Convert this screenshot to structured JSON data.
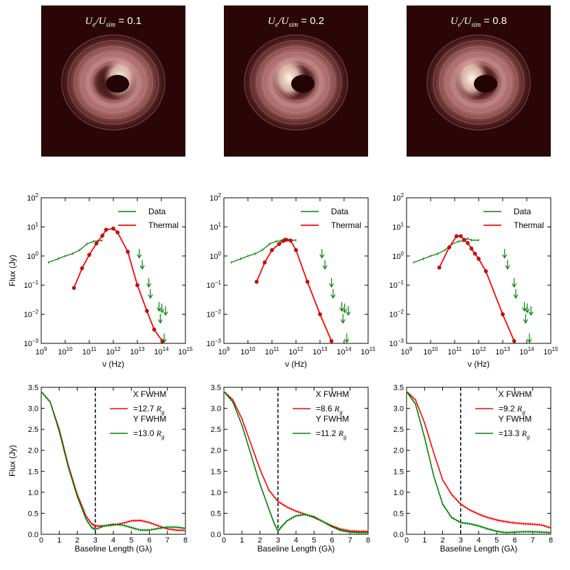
{
  "panels": [
    {
      "image": {
        "title_prefix": "U",
        "title_sub1": "e",
        "title_mid": "/U",
        "title_sub2": "sim",
        "title_value": " = 0.1",
        "hotspot_side": "right"
      }
    },
    {
      "image": {
        "title_prefix": "U",
        "title_sub1": "e",
        "title_mid": "/U",
        "title_sub2": "sim",
        "title_value": " = 0.2",
        "hotspot_side": "left"
      }
    },
    {
      "image": {
        "title_prefix": "U",
        "title_sub1": "e",
        "title_mid": "/U",
        "title_sub2": "sim",
        "title_value": " = 0.8",
        "hotspot_side": "left"
      }
    }
  ],
  "colors": {
    "data": "#008000",
    "thermal": "#ff0000",
    "x_fwhm": "#ff0000",
    "y_fwhm": "#008000",
    "image_bg": "#2a0606"
  },
  "chart_data": [
    {
      "type": "line",
      "panel": 1,
      "row": "sed",
      "xlabel": "ν (Hz)",
      "ylabel": "Flux (Jy)",
      "xscale": "log",
      "yscale": "log",
      "xlim": [
        1000000000.0,
        1000000000000000.0
      ],
      "ylim": [
        0.001,
        100
      ],
      "xtick_labels": [
        "10^9",
        "10^10",
        "10^11",
        "10^12",
        "10^13",
        "10^14",
        "10^15"
      ],
      "ytick_labels": [
        "10^-3",
        "10^-2",
        "10^-1",
        "10^0",
        "10^1",
        "10^2"
      ],
      "legend": [
        "Data",
        "Thermal"
      ],
      "legend_position": "top-right",
      "series": [
        {
          "name": "Data",
          "kind": "line",
          "x": [
            2000000000.0,
            5000000000.0,
            10000000000.0,
            20000000000.0,
            40000000000.0,
            80000000000.0,
            150000000000.0,
            230000000000.0,
            340000000000.0
          ],
          "y": [
            0.6,
            0.8,
            1.0,
            1.2,
            1.6,
            2.6,
            3.2,
            3.3,
            3.4
          ]
        },
        {
          "name": "Thermal",
          "kind": "line+markers",
          "x": [
            23000000000.0,
            50000000000.0,
            100000000000.0,
            200000000000.0,
            350000000000.0,
            500000000000.0,
            1000000000000.0,
            1500000000000.0,
            4000000000000.0,
            10000000000000.0,
            25000000000000.0,
            50000000000000.0,
            110000000000000.0
          ],
          "y": [
            0.08,
            0.38,
            1.1,
            2.7,
            5.0,
            8.0,
            8.8,
            6.5,
            1.4,
            0.1,
            0.013,
            0.003,
            0.0012
          ]
        },
        {
          "name": "upper limits",
          "kind": "arrows",
          "x": [
            12000000000000.0,
            16000000000000.0,
            30000000000000.0,
            35000000000000.0,
            80000000000000.0,
            90000000000000.0,
            105000000000000.0,
            130000000000000.0,
            150000000000000.0
          ],
          "y": [
            1.2,
            0.5,
            0.12,
            0.05,
            0.018,
            0.007,
            0.016,
            0.0015,
            0.013
          ]
        }
      ]
    },
    {
      "type": "line",
      "panel": 2,
      "row": "sed",
      "xlabel": "ν (Hz)",
      "ylabel": "",
      "xscale": "log",
      "yscale": "log",
      "xlim": [
        1000000000.0,
        1000000000000000.0
      ],
      "ylim": [
        0.001,
        100
      ],
      "xtick_labels": [
        "10^9",
        "10^10",
        "10^11",
        "10^12",
        "10^13",
        "10^14",
        "10^15"
      ],
      "ytick_labels": [
        "10^-3",
        "10^-2",
        "10^-1",
        "10^0",
        "10^1",
        "10^2"
      ],
      "legend": [
        "Data",
        "Thermal"
      ],
      "legend_position": "top-right",
      "series": [
        {
          "name": "Data",
          "kind": "line",
          "x": [
            2000000000.0,
            5000000000.0,
            10000000000.0,
            20000000000.0,
            40000000000.0,
            80000000000.0,
            150000000000.0,
            230000000000.0,
            340000000000.0,
            500000000000.0,
            1000000000000.0
          ],
          "y": [
            0.6,
            0.8,
            1.0,
            1.2,
            1.6,
            2.6,
            3.2,
            3.3,
            4.0,
            3.5,
            3.5
          ]
        },
        {
          "name": "Thermal",
          "kind": "line+markers",
          "x": [
            23000000000.0,
            50000000000.0,
            100000000000.0,
            200000000000.0,
            300000000000.0,
            400000000000.0,
            600000000000.0,
            1000000000000.0,
            3000000000000.0,
            10000000000000.0,
            30000000000000.0
          ],
          "y": [
            0.13,
            0.6,
            1.6,
            2.6,
            3.3,
            3.6,
            3.4,
            1.6,
            0.13,
            0.01,
            0.0012
          ]
        },
        {
          "name": "upper limits",
          "kind": "arrows",
          "x": [
            12000000000000.0,
            16000000000000.0,
            30000000000000.0,
            35000000000000.0,
            80000000000000.0,
            90000000000000.0,
            105000000000000.0,
            130000000000000.0,
            150000000000000.0
          ],
          "y": [
            1.2,
            0.5,
            0.12,
            0.05,
            0.018,
            0.007,
            0.016,
            0.0015,
            0.013
          ]
        }
      ]
    },
    {
      "type": "line",
      "panel": 3,
      "row": "sed",
      "xlabel": "ν (Hz)",
      "ylabel": "",
      "xscale": "log",
      "yscale": "log",
      "xlim": [
        1000000000.0,
        1000000000000000.0
      ],
      "ylim": [
        0.001,
        100
      ],
      "xtick_labels": [
        "10^9",
        "10^10",
        "10^11",
        "10^12",
        "10^13",
        "10^14",
        "10^15"
      ],
      "ytick_labels": [
        "10^-3",
        "10^-2",
        "10^-1",
        "10^0",
        "10^1",
        "10^2"
      ],
      "legend": [
        "Data",
        "Thermal"
      ],
      "legend_position": "top-right",
      "series": [
        {
          "name": "Data",
          "kind": "line",
          "x": [
            2000000000.0,
            5000000000.0,
            10000000000.0,
            20000000000.0,
            40000000000.0,
            80000000000.0,
            150000000000.0,
            230000000000.0,
            340000000000.0,
            500000000000.0,
            1000000000000.0
          ],
          "y": [
            0.6,
            0.8,
            1.0,
            1.2,
            1.6,
            2.6,
            3.2,
            3.3,
            4.0,
            3.5,
            3.5
          ]
        },
        {
          "name": "Thermal",
          "kind": "line+markers",
          "x": [
            23000000000.0,
            60000000000.0,
            120000000000.0,
            180000000000.0,
            250000000000.0,
            350000000000.0,
            500000000000.0,
            700000000000.0,
            1000000000000.0,
            2000000000000.0,
            10000000000000.0,
            30000000000000.0
          ],
          "y": [
            0.4,
            2.0,
            4.8,
            4.8,
            3.6,
            2.8,
            1.8,
            1.2,
            0.8,
            0.3,
            0.01,
            0.0012
          ]
        },
        {
          "name": "upper limits",
          "kind": "arrows",
          "x": [
            12000000000000.0,
            16000000000000.0,
            30000000000000.0,
            35000000000000.0,
            80000000000000.0,
            90000000000000.0,
            105000000000000.0,
            130000000000000.0,
            150000000000000.0
          ],
          "y": [
            1.2,
            0.5,
            0.12,
            0.05,
            0.018,
            0.007,
            0.016,
            0.0015,
            0.013
          ]
        }
      ]
    },
    {
      "type": "line",
      "panel": 1,
      "row": "visibility",
      "xlabel": "Baseline Length (Gλ)",
      "ylabel": "Flux (Jy)",
      "xlim": [
        0,
        8
      ],
      "ylim": [
        0,
        3.5
      ],
      "xticks": [
        0,
        1,
        2,
        3,
        4,
        5,
        6,
        7,
        8
      ],
      "yticks": [
        0.0,
        0.5,
        1.0,
        1.5,
        2.0,
        2.5,
        3.0,
        3.5
      ],
      "vline": 3,
      "legend": [
        {
          "name": "X FWHM",
          "value": "=12.7",
          "unit": "R",
          "unit_sub": "g"
        },
        {
          "name": "Y FWHM",
          "value": "=13.0",
          "unit": "R",
          "unit_sub": "g"
        }
      ],
      "legend_position": "top-right",
      "series": [
        {
          "name": "X FWHM",
          "x": [
            0,
            0.5,
            1,
            1.5,
            2,
            2.5,
            2.8,
            3,
            3.5,
            4,
            4.5,
            5,
            5.5,
            6,
            6.5,
            7,
            7.5,
            8
          ],
          "y": [
            3.4,
            3.15,
            2.5,
            1.65,
            0.95,
            0.42,
            0.25,
            0.2,
            0.2,
            0.22,
            0.26,
            0.32,
            0.33,
            0.28,
            0.2,
            0.13,
            0.1,
            0.09
          ]
        },
        {
          "name": "Y FWHM",
          "x": [
            0,
            0.5,
            1,
            1.5,
            2,
            2.5,
            2.8,
            3,
            3.5,
            4,
            4.5,
            5,
            5.5,
            6,
            6.5,
            7,
            7.5,
            8
          ],
          "y": [
            3.4,
            3.15,
            2.45,
            1.6,
            0.9,
            0.35,
            0.16,
            0.12,
            0.2,
            0.24,
            0.22,
            0.16,
            0.1,
            0.1,
            0.14,
            0.17,
            0.17,
            0.14
          ]
        }
      ]
    },
    {
      "type": "line",
      "panel": 2,
      "row": "visibility",
      "xlabel": "Baseline Length (Gλ)",
      "ylabel": "",
      "xlim": [
        0,
        8
      ],
      "ylim": [
        0,
        3.5
      ],
      "xticks": [
        0,
        1,
        2,
        3,
        4,
        5,
        6,
        7,
        8
      ],
      "yticks": [
        0.0,
        0.5,
        1.0,
        1.5,
        2.0,
        2.5,
        3.0,
        3.5
      ],
      "vline": 3,
      "legend": [
        {
          "name": "X FWHM",
          "value": "=8.6",
          "unit": "R",
          "unit_sub": "g"
        },
        {
          "name": "Y FWHM",
          "value": "=11.2",
          "unit": "R",
          "unit_sub": "g"
        }
      ],
      "legend_position": "top-right",
      "series": [
        {
          "name": "X FWHM",
          "x": [
            0,
            0.5,
            1,
            1.5,
            2,
            2.5,
            3,
            3.5,
            4,
            4.5,
            5,
            5.5,
            6,
            6.5,
            7,
            7.5,
            8
          ],
          "y": [
            3.4,
            3.2,
            2.75,
            2.15,
            1.55,
            1.05,
            0.78,
            0.65,
            0.55,
            0.48,
            0.4,
            0.3,
            0.2,
            0.12,
            0.08,
            0.07,
            0.07
          ]
        },
        {
          "name": "Y FWHM",
          "x": [
            0,
            0.5,
            1,
            1.5,
            2,
            2.5,
            2.8,
            3,
            3.2,
            3.5,
            4,
            4.5,
            5,
            5.5,
            6,
            6.5,
            7,
            7.5,
            8
          ],
          "y": [
            3.4,
            3.15,
            2.6,
            1.9,
            1.2,
            0.6,
            0.25,
            0.08,
            0.18,
            0.32,
            0.44,
            0.47,
            0.42,
            0.3,
            0.18,
            0.09,
            0.05,
            0.04,
            0.04
          ]
        }
      ]
    },
    {
      "type": "line",
      "panel": 3,
      "row": "visibility",
      "xlabel": "Baseline Length (Gλ)",
      "ylabel": "",
      "xlim": [
        0,
        8
      ],
      "ylim": [
        0,
        3.5
      ],
      "xticks": [
        0,
        1,
        2,
        3,
        4,
        5,
        6,
        7,
        8
      ],
      "yticks": [
        0.0,
        0.5,
        1.0,
        1.5,
        2.0,
        2.5,
        3.0,
        3.5
      ],
      "vline": 3,
      "legend": [
        {
          "name": "X FWHM",
          "value": "=9.2",
          "unit": "R",
          "unit_sub": "g"
        },
        {
          "name": "Y FWHM",
          "value": "=13.3",
          "unit": "R",
          "unit_sub": "g"
        }
      ],
      "legend_position": "top-right",
      "series": [
        {
          "name": "X FWHM",
          "x": [
            0,
            0.5,
            1,
            1.5,
            2,
            2.5,
            3,
            3.5,
            4,
            4.5,
            5,
            5.5,
            6,
            6.5,
            7,
            7.5,
            8
          ],
          "y": [
            3.4,
            3.2,
            2.65,
            1.95,
            1.3,
            0.95,
            0.72,
            0.58,
            0.48,
            0.4,
            0.34,
            0.3,
            0.27,
            0.25,
            0.24,
            0.22,
            0.15
          ]
        },
        {
          "name": "Y FWHM",
          "x": [
            0,
            0.5,
            1,
            1.5,
            2,
            2.5,
            3,
            3.5,
            4,
            4.5,
            5,
            5.5,
            6,
            6.5,
            7,
            7.5,
            8
          ],
          "y": [
            3.4,
            3.1,
            2.3,
            1.4,
            0.72,
            0.4,
            0.28,
            0.25,
            0.2,
            0.13,
            0.07,
            0.04,
            0.05,
            0.06,
            0.06,
            0.05,
            0.04
          ]
        }
      ]
    }
  ]
}
